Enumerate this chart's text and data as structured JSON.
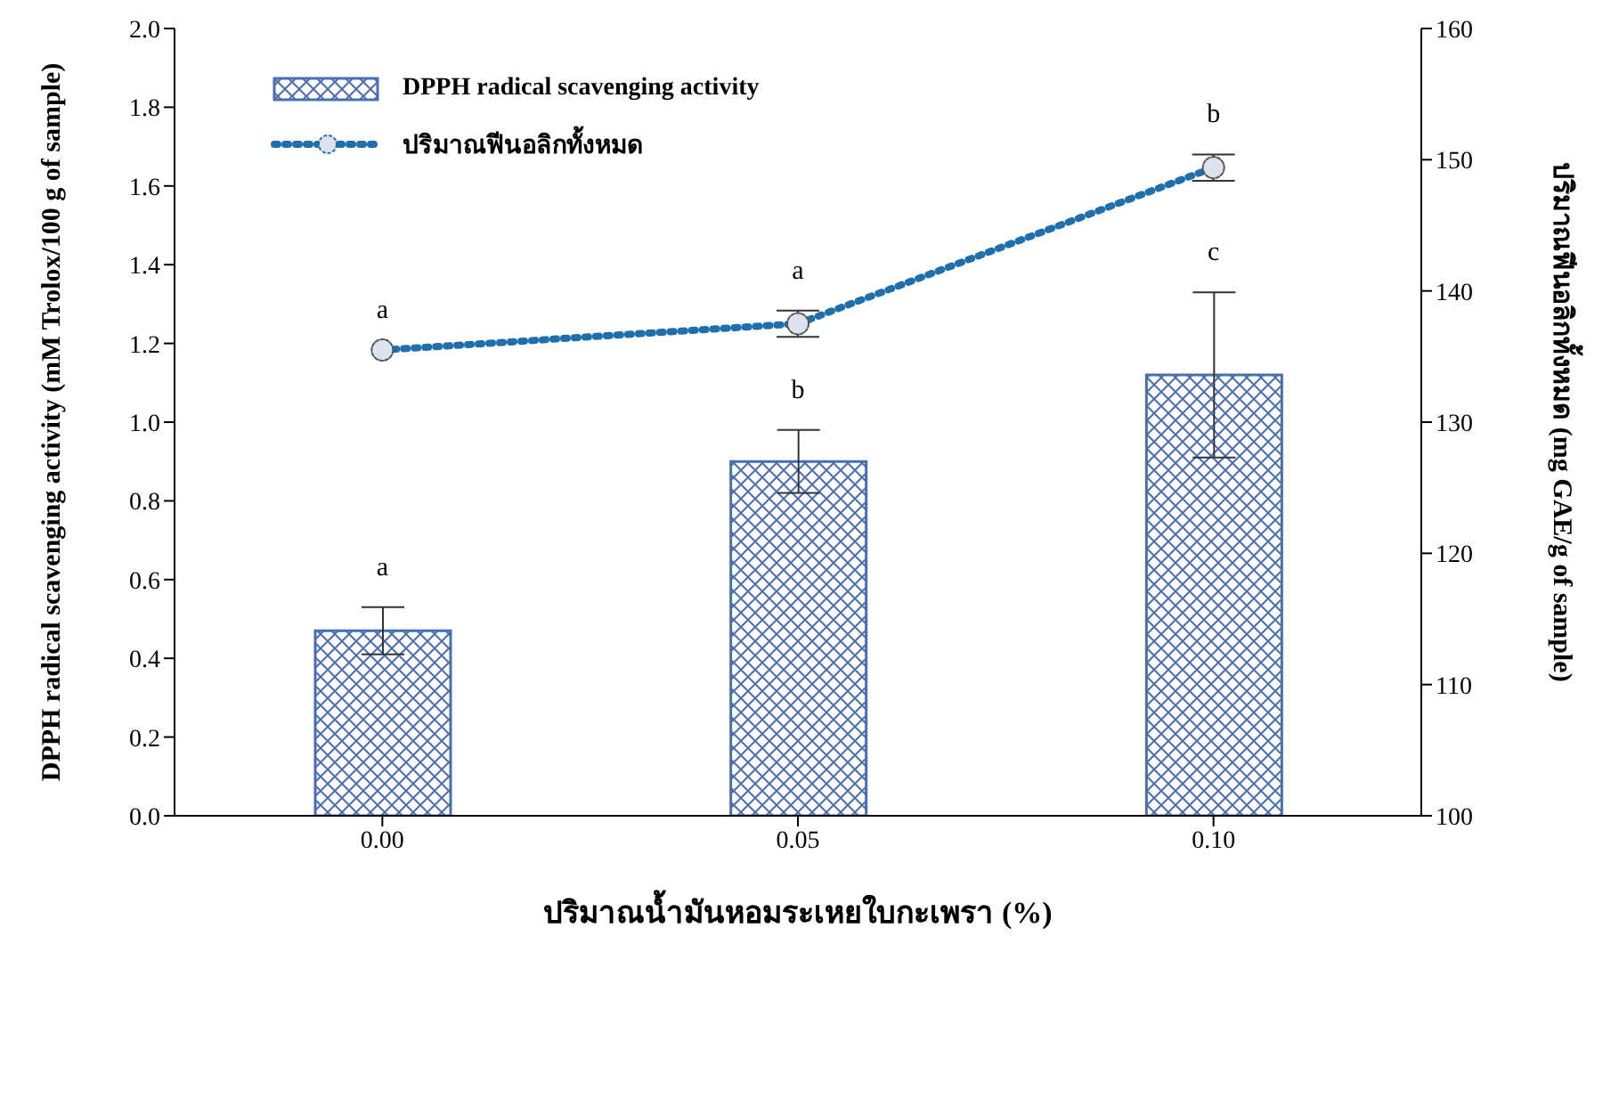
{
  "chart_data": {
    "type": "bar",
    "xlabel": "ปริมาณน้ำมันหอมระเหยใบกะเพรา (%)",
    "ylabel": "DPPH radical scavenging activity (mM Trolox/100 g of sample)",
    "y2label": "ปริมาณฟีนอลิกทั้งหมด (mg GAE/g of sample)",
    "categories": [
      "0.00",
      "0.05",
      "0.10"
    ],
    "series": [
      {
        "name": "DPPH radical scavenging activity",
        "color": "#4a6fb0",
        "values": [
          0.47,
          0.9,
          1.12
        ],
        "errors": [
          [
            0.41,
            0.53
          ],
          [
            0.82,
            0.98
          ],
          [
            0.91,
            1.33
          ]
        ]
      },
      {
        "name": "ปริมาณฟีนอลิกทั้งหมด",
        "type": "line",
        "axis": "y2",
        "color": "#1f6fad",
        "values": [
          135.5,
          137.5,
          149.4
        ],
        "errors": [
          null,
          [
            136.5,
            138.5
          ],
          [
            148.4,
            150.4
          ]
        ],
        "marker": "circle",
        "line_style": "dotted"
      }
    ],
    "ylim": [
      0,
      2
    ],
    "yticks": [
      {
        "value": 0,
        "label": "0.0"
      },
      {
        "value": 0.2,
        "label": "0.2"
      },
      {
        "value": 0.4,
        "label": "0.4"
      },
      {
        "value": 0.6,
        "label": "0.6"
      },
      {
        "value": 0.8,
        "label": "0.8"
      },
      {
        "value": 1,
        "label": "1.0"
      },
      {
        "value": 1.2,
        "label": "1.2"
      },
      {
        "value": 1.4,
        "label": "1.4"
      },
      {
        "value": 1.6,
        "label": "1.6"
      },
      {
        "value": 1.8,
        "label": "1.8"
      },
      {
        "value": 2,
        "label": "2.0"
      }
    ],
    "y2lim": [
      100,
      160
    ],
    "y2ticks": [
      100,
      110,
      120,
      130,
      140,
      150,
      160
    ],
    "annotations": [
      "a",
      "b",
      "c",
      "a",
      "a",
      "b"
    ],
    "grid": false,
    "legend": "top left"
  }
}
